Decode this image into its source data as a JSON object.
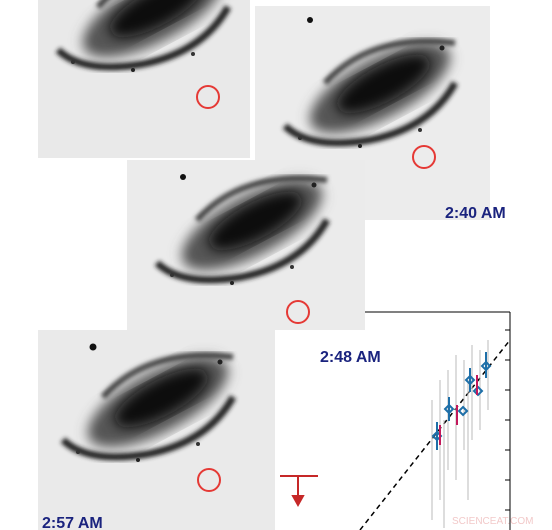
{
  "timestamps": [
    "2:40 AM",
    "2:48 AM",
    "2:57 AM"
  ],
  "watermark": "SCIENCEAT.COM"
}
